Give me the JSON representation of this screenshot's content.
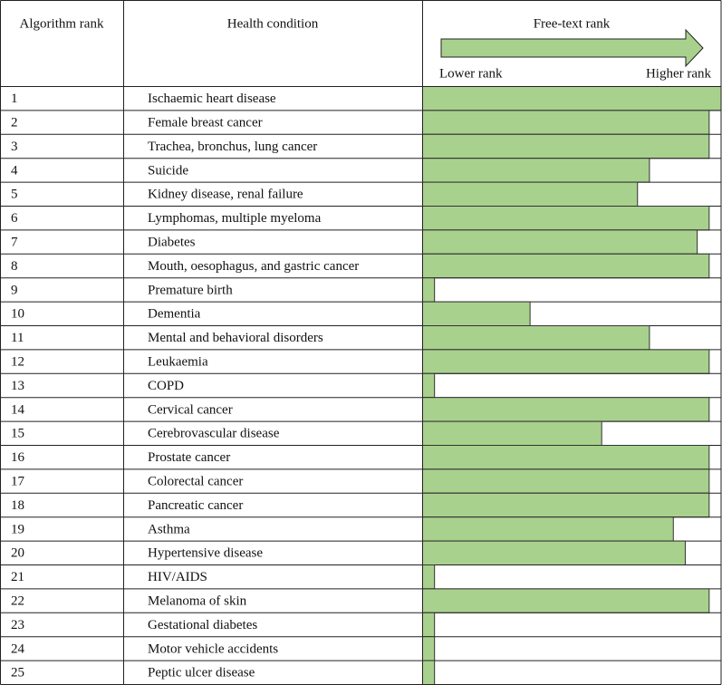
{
  "chart_data": {
    "type": "bar",
    "columns": [
      "Algorithm rank",
      "Health condition"
    ],
    "title": "Free-text rank",
    "low_label": "Lower rank",
    "high_label": "Higher rank",
    "ranks": [
      1,
      2,
      3,
      4,
      5,
      6,
      7,
      8,
      9,
      10,
      11,
      12,
      13,
      14,
      15,
      16,
      17,
      18,
      19,
      20,
      21,
      22,
      23,
      24,
      25
    ],
    "categories": [
      "Ischaemic heart disease",
      "Female breast cancer",
      "Trachea, bronchus, lung cancer",
      "Suicide",
      "Kidney disease, renal failure",
      "Lymphomas, multiple myeloma",
      "Diabetes",
      "Mouth, oesophagus, and gastric cancer",
      "Premature birth",
      "Dementia",
      "Mental and behavioral disorders",
      "Leukaemia",
      "COPD",
      "Cervical cancer",
      "Cerebrovascular disease",
      "Prostate cancer",
      "Colorectal cancer",
      "Pancreatic cancer",
      "Asthma",
      "Hypertensive disease",
      "HIV/AIDS",
      "Melanoma of skin",
      "Gestational diabetes",
      "Motor vehicle accidents",
      "Peptic ulcer disease"
    ],
    "values": [
      25,
      24,
      24,
      19,
      18,
      24,
      23,
      24,
      1,
      9,
      19,
      24,
      1,
      24,
      15,
      24,
      24,
      24,
      21,
      22,
      1,
      24,
      1,
      1,
      1
    ],
    "xlim": [
      0,
      25
    ],
    "color": "#a9d18e"
  }
}
